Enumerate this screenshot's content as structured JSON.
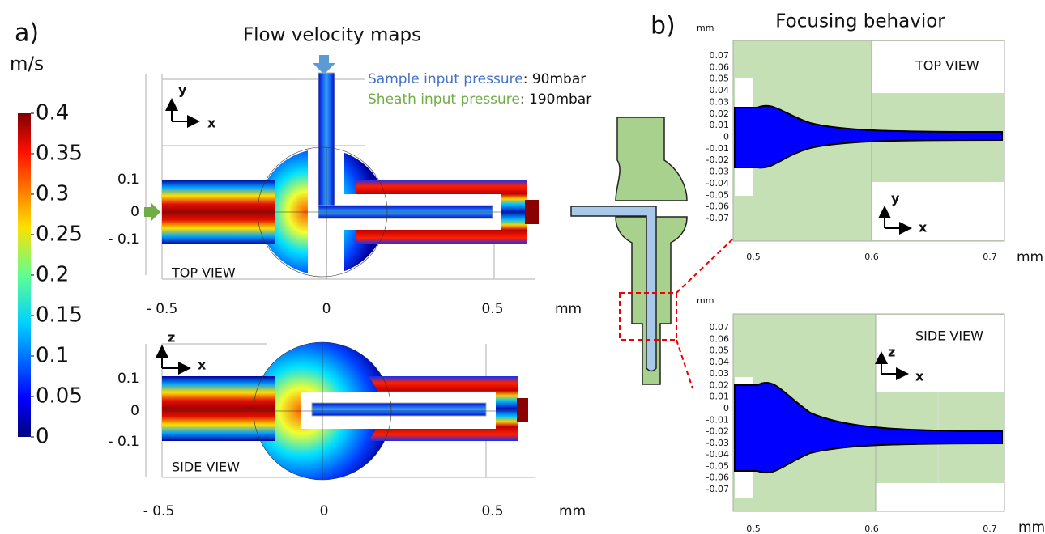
{
  "panel_a": {
    "label": "a)",
    "title": "Flow velocity maps",
    "colorbar": {
      "unit": "m/s",
      "ticks": [
        "0.4",
        "0.35",
        "0.3",
        "0.25",
        "0.2",
        "0.15",
        "0.1",
        "0.05",
        "0"
      ]
    },
    "legend": {
      "sample_label": "Sample input pressure",
      "sample_value": ": 90mbar",
      "sheath_label": "Sheath input pressure",
      "sheath_value": ": 190mbar"
    },
    "top_view": {
      "label": "TOP VIEW",
      "axis_v": "y",
      "axis_h": "x",
      "yticks": [
        "0.1",
        "0",
        "- 0.1"
      ],
      "xticks": [
        "- 0.5",
        "0",
        "0.5"
      ],
      "x_unit": "mm"
    },
    "side_view": {
      "label": "SIDE VIEW",
      "axis_v": "z",
      "axis_h": "x",
      "yticks": [
        "0.1",
        "0",
        "- 0.1"
      ],
      "xticks": [
        "- 0.5",
        "0",
        "0.5"
      ],
      "x_unit": "mm"
    }
  },
  "panel_b": {
    "label": "b)",
    "title": "Focusing behavior",
    "top_view": {
      "label": "TOP VIEW",
      "axis_v": "y",
      "axis_h": "x",
      "y_unit": "mm",
      "x_unit": "mm",
      "yticks": [
        "0.07",
        "0.06",
        "0.05",
        "0.04",
        "0.03",
        "0.02",
        "0.01",
        "0",
        "-0.01",
        "-0.02",
        "-0.03",
        "-0.04",
        "-0.05",
        "-0.06",
        "-0.07"
      ],
      "xticks": [
        "0.5",
        "0.6",
        "0.7"
      ]
    },
    "side_view": {
      "label": "SIDE VIEW",
      "axis_v": "z",
      "axis_h": "x",
      "y_unit": "mm",
      "x_unit": "mm",
      "yticks": [
        "0.07",
        "0.06",
        "0.05",
        "0.04",
        "0.03",
        "0.02",
        "0.01",
        "0",
        "-0.01",
        "-0.02",
        "-0.03",
        "-0.04",
        "-0.05",
        "-0.06",
        "-0.07"
      ],
      "xticks": [
        "0.5",
        "0.6",
        "0.7"
      ]
    }
  }
}
